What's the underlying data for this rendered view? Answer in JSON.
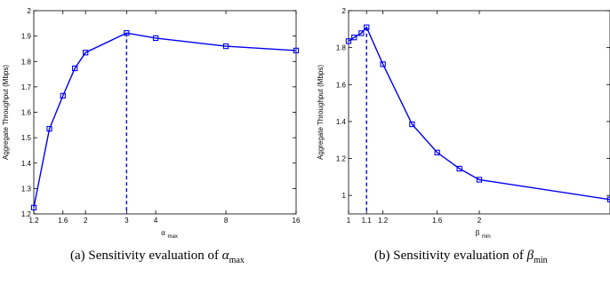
{
  "chart_data": [
    {
      "type": "line",
      "xlabel": "α",
      "xlabel_sub": "max",
      "ylabel": "Aggregate Throughput (Mbps)",
      "x_ticks": [
        "1.2",
        "1.6",
        "2",
        "3",
        "4",
        "8",
        "16"
      ],
      "y_ticks": [
        "1.2",
        "1.3",
        "1.4",
        "1.5",
        "1.6",
        "1.7",
        "1.8",
        "1.9",
        "2"
      ],
      "ylim": [
        1.2,
        2.0
      ],
      "x_scale": "log",
      "color": "#0000ee",
      "marker": "square",
      "series": [
        {
          "x": [
            1.2,
            1.4,
            1.6,
            1.8,
            2,
            3,
            4,
            8,
            16
          ],
          "y": [
            1.225,
            1.535,
            1.665,
            1.773,
            1.835,
            1.912,
            1.892,
            1.86,
            1.843
          ]
        }
      ],
      "reference_line": {
        "x": 3,
        "y": 1.912,
        "style": "dashed"
      },
      "caption_text": "(a) Sensitivity evaluation of",
      "caption_symbol": "α",
      "caption_sub": "max"
    },
    {
      "type": "line",
      "xlabel": "β",
      "xlabel_sub": "min",
      "ylabel": "Aggregate Throughput (Mbps)",
      "x_ticks": [
        "1",
        "1.1",
        "1.2",
        "1.6",
        "2"
      ],
      "y_ticks": [
        "1",
        "1.2",
        "1.4",
        "1.6",
        "1.8",
        "2"
      ],
      "ylim": [
        0.9,
        2.0
      ],
      "x_scale": "log",
      "color": "#0000ee",
      "marker": "square",
      "series": [
        {
          "x": [
            1,
            1.03,
            1.07,
            1.1,
            1.2,
            1.4,
            1.6,
            1.8,
            2,
            4
          ],
          "y": [
            1.835,
            1.855,
            1.878,
            1.91,
            1.71,
            1.385,
            1.232,
            1.145,
            1.085,
            0.978
          ]
        }
      ],
      "reference_line": {
        "x": 1.1,
        "y": 1.91,
        "style": "dashed"
      },
      "caption_text": "(b) Sensitivity evaluation of",
      "caption_symbol": "β",
      "caption_sub": "min"
    }
  ]
}
